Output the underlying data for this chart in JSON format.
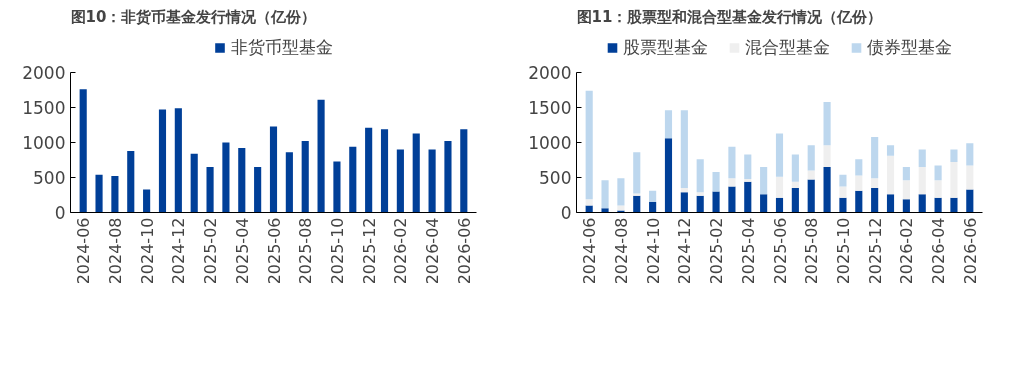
{
  "chart_data": [
    {
      "type": "bar",
      "title": "图10：非货币基金发行情况（亿份）",
      "categories": [
        "2024-06",
        null,
        "2024-08",
        null,
        "2024-10",
        null,
        "2024-12",
        null,
        "2025-02",
        null,
        "2025-04",
        null,
        "2025-06",
        null,
        "2025-08",
        null,
        "2025-10",
        null,
        "2025-12",
        null,
        "2026-02",
        null,
        "2026-04",
        null,
        "2026-06"
      ],
      "series": [
        {
          "name": "非货币型基金",
          "color": "#003f98",
          "values": [
            1760,
            540,
            520,
            880,
            330,
            1470,
            1490,
            840,
            650,
            1000,
            920,
            650,
            1230,
            860,
            1020,
            1610,
            730,
            940,
            1210,
            1190,
            900,
            1130,
            900,
            1020,
            1190
          ]
        }
      ],
      "ylim": [
        0,
        2000
      ],
      "yticks": [
        0,
        500,
        1000,
        1500,
        2000
      ],
      "grid": false,
      "legend": "top"
    },
    {
      "type": "bar",
      "title": "图11：股票型和混合型基金发行情况（亿份）",
      "stacked": true,
      "categories": [
        "2024-06",
        null,
        "2024-08",
        null,
        "2024-10",
        null,
        "2024-12",
        null,
        "2025-02",
        null,
        "2025-04",
        null,
        "2025-06",
        null,
        "2025-08",
        null,
        "2025-10",
        null,
        "2025-12",
        null,
        "2026-02",
        null,
        "2026-04",
        null,
        "2026-06"
      ],
      "series": [
        {
          "name": "股票型基金",
          "color": "#003f98",
          "values": [
            100,
            60,
            30,
            240,
            150,
            1060,
            290,
            240,
            300,
            370,
            440,
            260,
            210,
            350,
            470,
            650,
            210,
            310,
            350,
            260,
            190,
            260,
            210,
            210,
            330
          ]
        },
        {
          "name": "混合型基金",
          "color": "#efefef",
          "values": [
            90,
            null,
            70,
            30,
            0,
            0,
            60,
            50,
            0,
            120,
            40,
            null,
            300,
            90,
            130,
            310,
            160,
            220,
            140,
            550,
            270,
            390,
            250,
            510,
            340
          ]
        },
        {
          "name": "债券型基金",
          "color": "#bdd7ee",
          "values": [
            1550,
            400,
            390,
            590,
            160,
            400,
            1110,
            470,
            280,
            450,
            350,
            390,
            620,
            390,
            360,
            620,
            170,
            230,
            590,
            150,
            190,
            250,
            210,
            180,
            320
          ]
        }
      ],
      "ylim": [
        0,
        2000
      ],
      "yticks": [
        0,
        500,
        1000,
        1500,
        2000
      ],
      "grid": false,
      "legend": "top"
    }
  ]
}
